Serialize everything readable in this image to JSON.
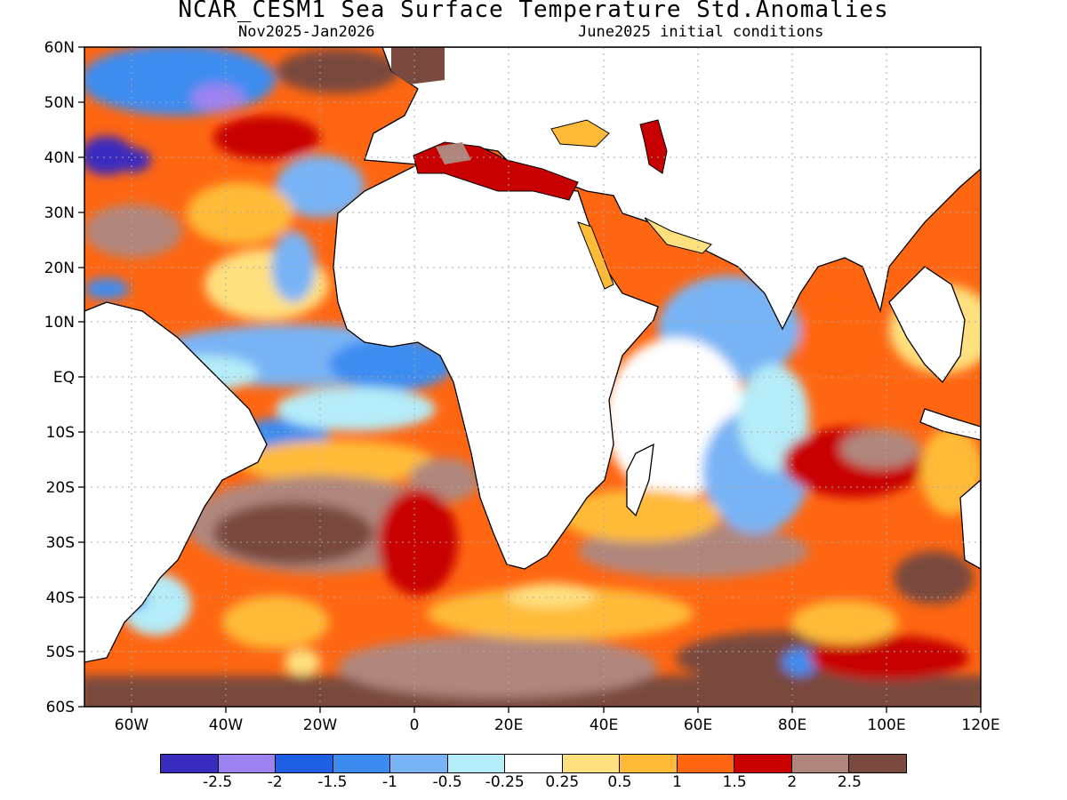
{
  "title": "NCAR_CESM1 Sea Surface Temperature Std.Anomalies",
  "subtitle_left": "Nov2025-Jan2026",
  "subtitle_right": "June2025 initial conditions",
  "lat_labels": [
    "60N",
    "50N",
    "40N",
    "30N",
    "20N",
    "10N",
    "EQ",
    "10S",
    "20S",
    "30S",
    "40S",
    "50S",
    "60S"
  ],
  "lon_labels": [
    "60W",
    "40W",
    "20W",
    "0",
    "20E",
    "40E",
    "60E",
    "80E",
    "100E",
    "120E"
  ],
  "colorbar": {
    "colors": [
      "#3b2cc0",
      "#9b82f0",
      "#1e5fe6",
      "#3c8cf0",
      "#78b4f5",
      "#b4ecf8",
      "#ffffff",
      "#ffe07e",
      "#ffbb37",
      "#ff6611",
      "#c80000",
      "#b0867c",
      "#7a4a3e"
    ],
    "labels": [
      "-2.5",
      "-2",
      "-1.5",
      "-1",
      "-0.5",
      "-0.25",
      "0.25",
      "0.5",
      "1",
      "1.5",
      "2",
      "2.5"
    ]
  },
  "map_colors": {
    "land": "#ffffff",
    "coast": "#000000",
    "grid": "#a8a8a8"
  }
}
